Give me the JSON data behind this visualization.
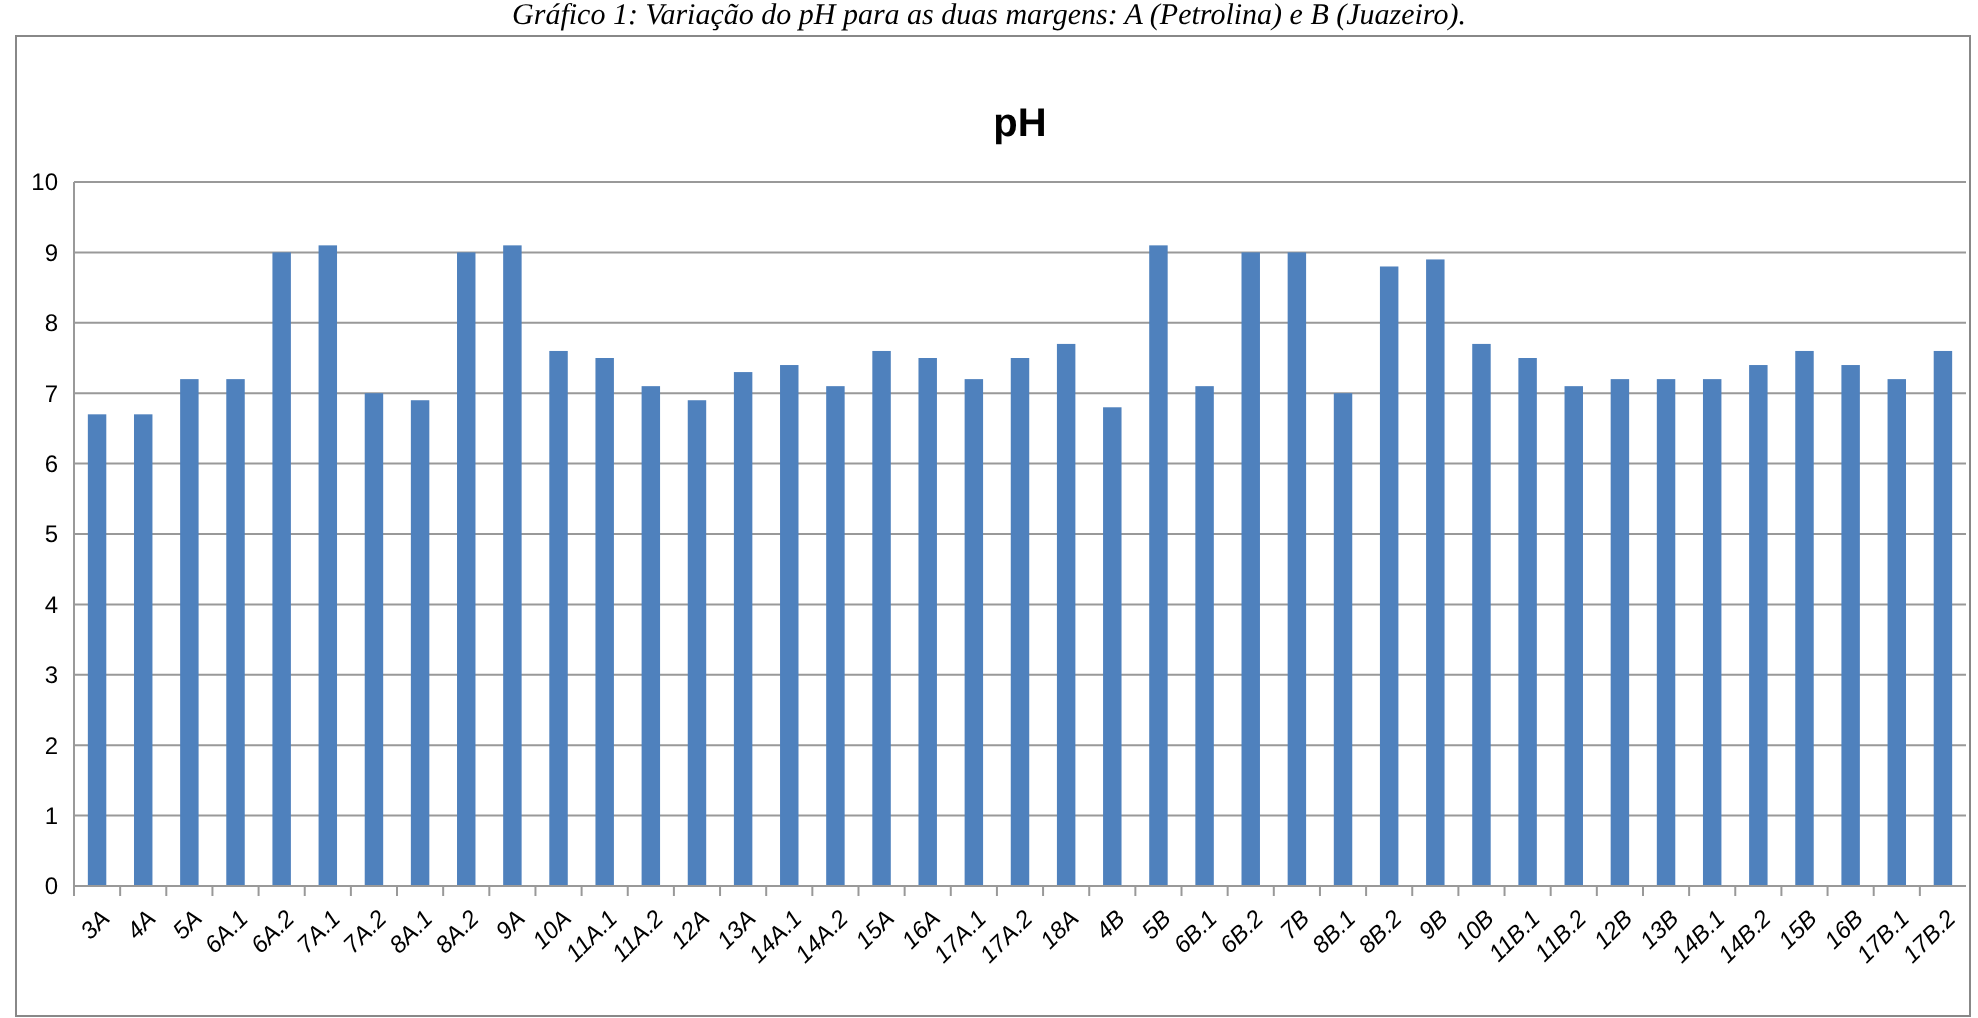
{
  "chart_data": {
    "type": "bar",
    "title": "pH",
    "annotations": [
      "Gráfico 1: Variação do pH para as duas margens: A (Petrolina) e B (Juazeiro)."
    ],
    "categories": [
      "3A",
      "4A",
      "5A",
      "6A.1",
      "6A.2",
      "7A.1",
      "7A.2",
      "8A.1",
      "8A.2",
      "9A",
      "10A",
      "11A.1",
      "11A.2",
      "12A",
      "13A",
      "14A.1",
      "14A.2",
      "15A",
      "16A",
      "17A.1",
      "17A.2",
      "18A",
      "4B",
      "5B",
      "6B.1",
      "6B.2",
      "7B",
      "8B.1",
      "8B.2",
      "9B",
      "10B",
      "11B.1",
      "11B.2",
      "12B",
      "13B",
      "14B.1",
      "14B.2",
      "15B",
      "16B",
      "17B.1",
      "17B.2"
    ],
    "values": [
      6.7,
      6.7,
      7.2,
      7.2,
      9.0,
      9.1,
      7.0,
      6.9,
      9.0,
      9.1,
      7.6,
      7.5,
      7.1,
      6.9,
      7.3,
      7.4,
      7.1,
      7.6,
      7.5,
      7.2,
      7.5,
      7.7,
      6.8,
      9.1,
      7.1,
      9.0,
      9.0,
      7.0,
      8.8,
      8.9,
      7.7,
      7.5,
      7.1,
      7.2,
      7.2,
      7.2,
      7.4,
      7.6,
      7.4,
      7.2,
      7.6
    ],
    "color": "#4f81bd",
    "ylim": [
      0,
      10
    ],
    "yticks": [
      0,
      1,
      2,
      3,
      4,
      5,
      6,
      7,
      8,
      9,
      10
    ],
    "grid": "y"
  }
}
